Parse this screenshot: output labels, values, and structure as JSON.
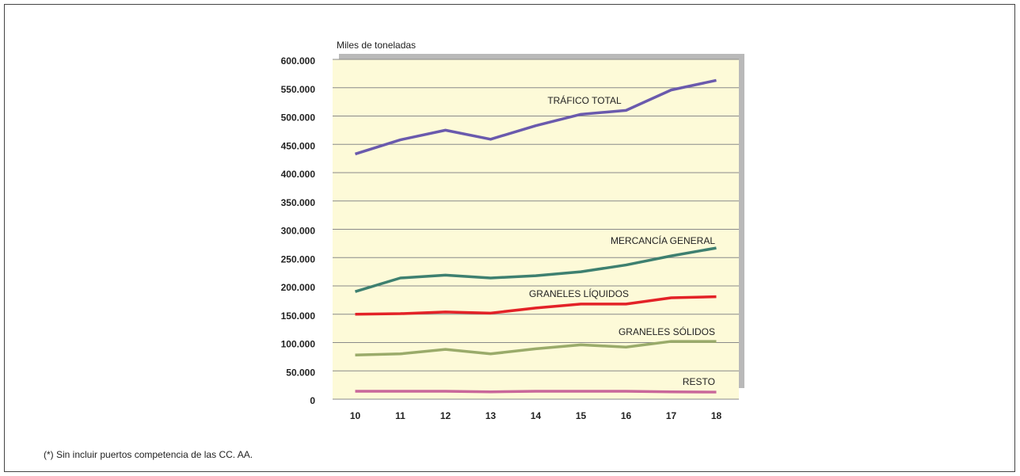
{
  "chart_data": {
    "type": "line",
    "y_axis_label": "Miles de toneladas",
    "footnote": "(*) Sin incluir puertos competencia de las CC. AA.",
    "categories": [
      "10",
      "11",
      "12",
      "13",
      "14",
      "15",
      "16",
      "17",
      "18"
    ],
    "series": [
      {
        "name": "TRÁFICO TOTAL",
        "color": "#6a5aad",
        "values": [
          433000,
          458000,
          475000,
          459000,
          483000,
          503000,
          510000,
          546000,
          563000
        ]
      },
      {
        "name": "MERCANCÍA GENERAL",
        "color": "#3e8070",
        "values": [
          190000,
          214000,
          219000,
          214000,
          218000,
          225000,
          237000,
          253000,
          267000
        ]
      },
      {
        "name": "GRANELES LÍQUIDOS",
        "color": "#e32227",
        "values": [
          150000,
          151000,
          154000,
          152000,
          161000,
          168000,
          168000,
          179000,
          181000
        ]
      },
      {
        "name": "GRANELES SÓLIDOS",
        "color": "#9aab6a",
        "values": [
          78000,
          80000,
          88000,
          80000,
          89000,
          96000,
          92000,
          102000,
          102000
        ]
      },
      {
        "name": "RESTO",
        "color": "#c9679a",
        "values": [
          14000,
          14000,
          14000,
          13000,
          14000,
          14000,
          14000,
          13000,
          12500
        ]
      }
    ],
    "ylim": [
      0,
      600000
    ],
    "yticks": [
      0,
      {
        "value": 50000,
        "label": "50.000"
      },
      {
        "value": 100000,
        "label": "100.000"
      },
      {
        "value": 150000,
        "label": "150.000"
      },
      {
        "value": 200000,
        "label": "200.000"
      },
      {
        "value": 250000,
        "label": "250.000"
      },
      {
        "value": 300000,
        "label": "300.000"
      },
      {
        "value": 350000,
        "label": "350.000"
      },
      {
        "value": 400000,
        "label": "400.000"
      },
      {
        "value": 450000,
        "label": "450.000"
      },
      {
        "value": 500000,
        "label": "500.000"
      },
      {
        "value": 550000,
        "label": "550.000"
      },
      {
        "value": 600000,
        "label": "600.000"
      }
    ],
    "grid": true
  }
}
